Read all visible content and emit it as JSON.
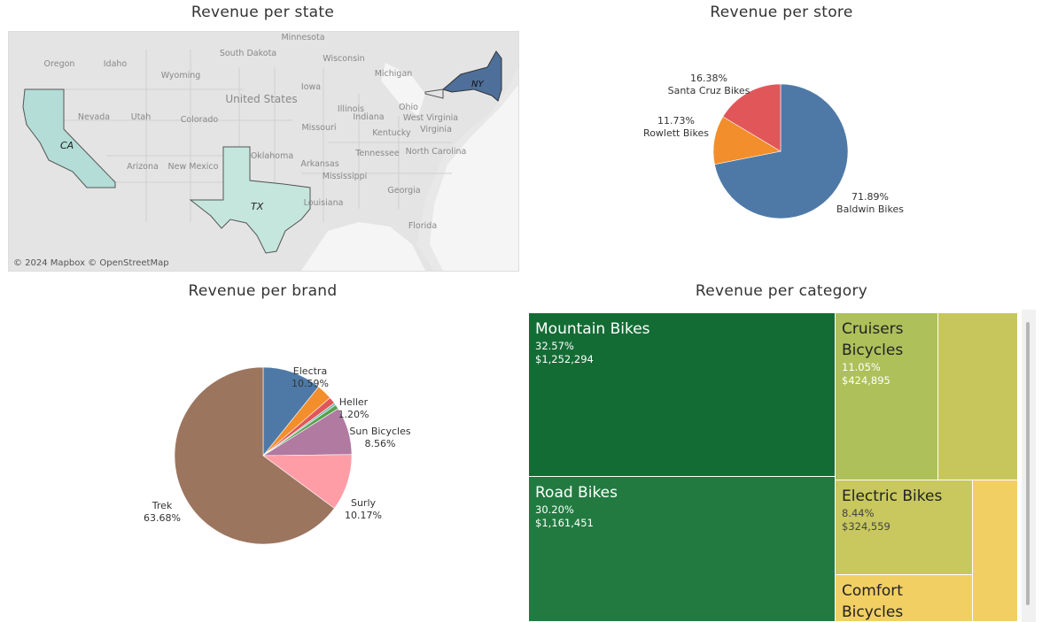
{
  "titles": {
    "state": "Revenue per state",
    "store": "Revenue per store",
    "brand": "Revenue per brand",
    "category": "Revenue per category"
  },
  "map": {
    "credit": "© 2024 Mapbox © OpenStreetMap",
    "bg_labels": [
      "Minnesota",
      "South Dakota",
      "Wisconsin",
      "Michigan",
      "Oregon",
      "Idaho",
      "Wyoming",
      "Iowa",
      "United States",
      "Nevada",
      "Utah",
      "Colorado",
      "Illinois",
      "Ohio",
      "Indiana",
      "Missouri",
      "Kentucky",
      "West Virginia",
      "Virginia",
      "Arizona",
      "New Mexico",
      "Oklahoma",
      "Arkansas",
      "Tennessee",
      "North Carolina",
      "Mississippi",
      "Georgia",
      "Louisiana",
      "Florida"
    ],
    "state_colors": {
      "CA": "#b3ddd6",
      "TX": "#c5e6dc",
      "NY": "#4e6f99"
    }
  },
  "chart_data": [
    {
      "type": "map",
      "title": "Revenue per state",
      "regions": [
        "CA",
        "TX",
        "NY"
      ]
    },
    {
      "type": "pie",
      "title": "Revenue per store",
      "slices": [
        {
          "label": "Baldwin Bikes",
          "pct_label": "71.89%",
          "value": 71.89,
          "color": "#4e79a7"
        },
        {
          "label": "Rowlett Bikes",
          "pct_label": "11.73%",
          "value": 11.73,
          "color": "#f28e2b"
        },
        {
          "label": "Santa Cruz Bikes",
          "pct_label": "16.38%",
          "value": 16.38,
          "color": "#e15759"
        }
      ]
    },
    {
      "type": "pie",
      "title": "Revenue per brand",
      "slices": [
        {
          "label": "Electra",
          "pct_label": "10.59%",
          "value": 10.59,
          "color": "#4e79a7"
        },
        {
          "label": "",
          "pct_label": "",
          "value": 2.8,
          "color": "#f28e2b"
        },
        {
          "label": "Heller",
          "pct_label": "1.20%",
          "value": 1.2,
          "color": "#e15759"
        },
        {
          "label": "",
          "pct_label": "",
          "value": 0.4,
          "color": "#76b7b2"
        },
        {
          "label": "",
          "pct_label": "",
          "value": 0.8,
          "color": "#59a14f"
        },
        {
          "label": "Sun Bicycles",
          "pct_label": "8.56%",
          "value": 8.56,
          "color": "#b07aa1"
        },
        {
          "label": "Surly",
          "pct_label": "10.17%",
          "value": 10.17,
          "color": "#ff9da7"
        },
        {
          "label": "Trek",
          "pct_label": "63.68%",
          "value": 63.68,
          "color": "#9c755f"
        }
      ]
    },
    {
      "type": "treemap",
      "title": "Revenue per category",
      "cells": [
        {
          "name": "Mountain Bikes",
          "pct": "32.57%",
          "value": "$1,252,294",
          "color": "#146c35"
        },
        {
          "name": "Road Bikes",
          "pct": "30.20%",
          "value": "$1,161,451",
          "color": "#227a40"
        },
        {
          "name": "Cruisers Bicycles",
          "pct": "11.05%",
          "value": "$424,895",
          "color": "#adc05a"
        },
        {
          "name": "",
          "pct": "",
          "value": "",
          "color": "#c7c65d"
        },
        {
          "name": "Electric Bikes",
          "pct": "8.44%",
          "value": "$324,559",
          "color": "#c8c85e"
        },
        {
          "name": "",
          "pct": "",
          "value": "",
          "color": "#f1cf63"
        },
        {
          "name": "Comfort Bicycles",
          "pct": "",
          "value": "",
          "color": "#f1cf63"
        }
      ]
    }
  ]
}
